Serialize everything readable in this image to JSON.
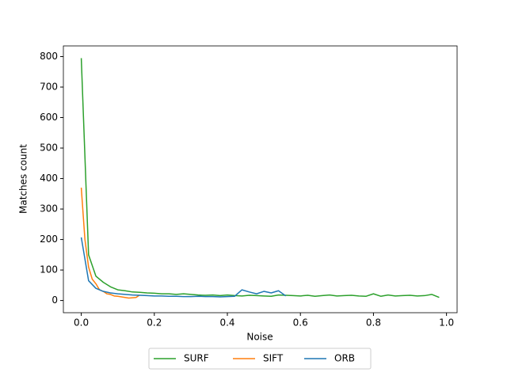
{
  "chart_data": {
    "type": "line",
    "xlabel": "Noise",
    "ylabel": "Matches count",
    "xlim": [
      -0.049,
      1.029
    ],
    "ylim": [
      -40,
      835
    ],
    "xticks": [
      {
        "value": 0,
        "label": "0.0"
      },
      0.2,
      0.4,
      0.6,
      0.8,
      {
        "value": 1,
        "label": "1.0"
      }
    ],
    "yticks": [
      0,
      100,
      200,
      300,
      400,
      500,
      600,
      700,
      800
    ],
    "legend": "bottom",
    "series": [
      {
        "name": "SURF",
        "color": "#2ca02c",
        "x": [
          0,
          0.02,
          0.04,
          0.06,
          0.08,
          0.1,
          0.12,
          0.14,
          0.16,
          0.18,
          0.2,
          0.22,
          0.24,
          0.26,
          0.28,
          0.3,
          0.32,
          0.34,
          0.36,
          0.38,
          0.4,
          0.42,
          0.44,
          0.46,
          0.48,
          0.5,
          0.52,
          0.54,
          0.56,
          0.58,
          0.6,
          0.62,
          0.64,
          0.66,
          0.68,
          0.7,
          0.72,
          0.74,
          0.76,
          0.78,
          0.8,
          0.82,
          0.84,
          0.86,
          0.88,
          0.9,
          0.92,
          0.94,
          0.96,
          0.98
        ],
        "values": [
          795,
          150,
          80,
          60,
          45,
          35,
          32,
          28,
          27,
          25,
          24,
          22,
          22,
          20,
          22,
          20,
          18,
          17,
          18,
          16,
          18,
          16,
          15,
          17,
          16,
          15,
          14,
          18,
          17,
          16,
          15,
          17,
          14,
          16,
          18,
          15,
          16,
          17,
          15,
          14,
          22,
          14,
          18,
          15,
          16,
          17,
          15,
          16,
          20,
          10
        ]
      },
      {
        "name": "SIFT",
        "color": "#ff7f0e",
        "x": [
          0,
          0.01,
          0.02,
          0.03,
          0.04,
          0.05,
          0.06,
          0.07,
          0.08,
          0.09,
          0.1,
          0.11,
          0.12,
          0.13,
          0.14,
          0.15,
          0.16
        ],
        "values": [
          370,
          200,
          110,
          70,
          55,
          35,
          30,
          22,
          20,
          15,
          14,
          12,
          10,
          8,
          9,
          10,
          18
        ]
      },
      {
        "name": "ORB",
        "color": "#1f77b4",
        "x": [
          0,
          0.02,
          0.04,
          0.06,
          0.08,
          0.1,
          0.12,
          0.14,
          0.16,
          0.18,
          0.2,
          0.22,
          0.24,
          0.26,
          0.28,
          0.3,
          0.32,
          0.34,
          0.36,
          0.38,
          0.4,
          0.42,
          0.44,
          0.46,
          0.48,
          0.5,
          0.52,
          0.54,
          0.56
        ],
        "values": [
          207,
          65,
          40,
          30,
          25,
          22,
          20,
          18,
          17,
          16,
          15,
          15,
          14,
          14,
          13,
          13,
          14,
          13,
          13,
          12,
          13,
          14,
          35,
          28,
          22,
          30,
          25,
          32,
          15
        ]
      }
    ]
  }
}
